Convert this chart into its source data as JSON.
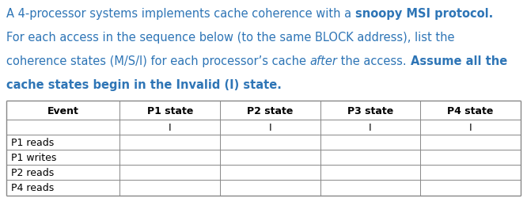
{
  "blue": "#2E75B6",
  "black": "#000000",
  "white": "#FFFFFF",
  "border_color": "#888888",
  "table_headers": [
    "Event",
    "P1 state",
    "P2 state",
    "P3 state",
    "P4 state"
  ],
  "initial_row_vals": [
    "",
    "I",
    "I",
    "I",
    "I"
  ],
  "data_rows": [
    [
      "P1 reads",
      "",
      "",
      "",
      ""
    ],
    [
      "P1 writes",
      "",
      "",
      "",
      ""
    ],
    [
      "P2 reads",
      "",
      "",
      "",
      ""
    ],
    [
      "P4 reads",
      "",
      "",
      "",
      ""
    ]
  ],
  "para_lines": [
    [
      {
        "text": "A 4-processor systems implements cache coherence with a ",
        "bold": false,
        "italic": false
      },
      {
        "text": "snoopy MSI protocol.",
        "bold": true,
        "italic": false
      }
    ],
    [
      {
        "text": "For each access in the sequence below (to the same BLOCK address), list the",
        "bold": false,
        "italic": false
      }
    ],
    [
      {
        "text": "coherence states (M/S/I) for each processor’s cache ",
        "bold": false,
        "italic": false
      },
      {
        "text": "after",
        "bold": false,
        "italic": true
      },
      {
        "text": " the access. ",
        "bold": false,
        "italic": false
      },
      {
        "text": "Assume all the",
        "bold": true,
        "italic": false
      }
    ],
    [
      {
        "text": "cache states begin in the Invalid (I) state.",
        "bold": true,
        "italic": false
      }
    ]
  ],
  "para_fontsize": 10.5,
  "table_fontsize": 9.0,
  "fig_width": 6.66,
  "fig_height": 2.51,
  "dpi": 100
}
